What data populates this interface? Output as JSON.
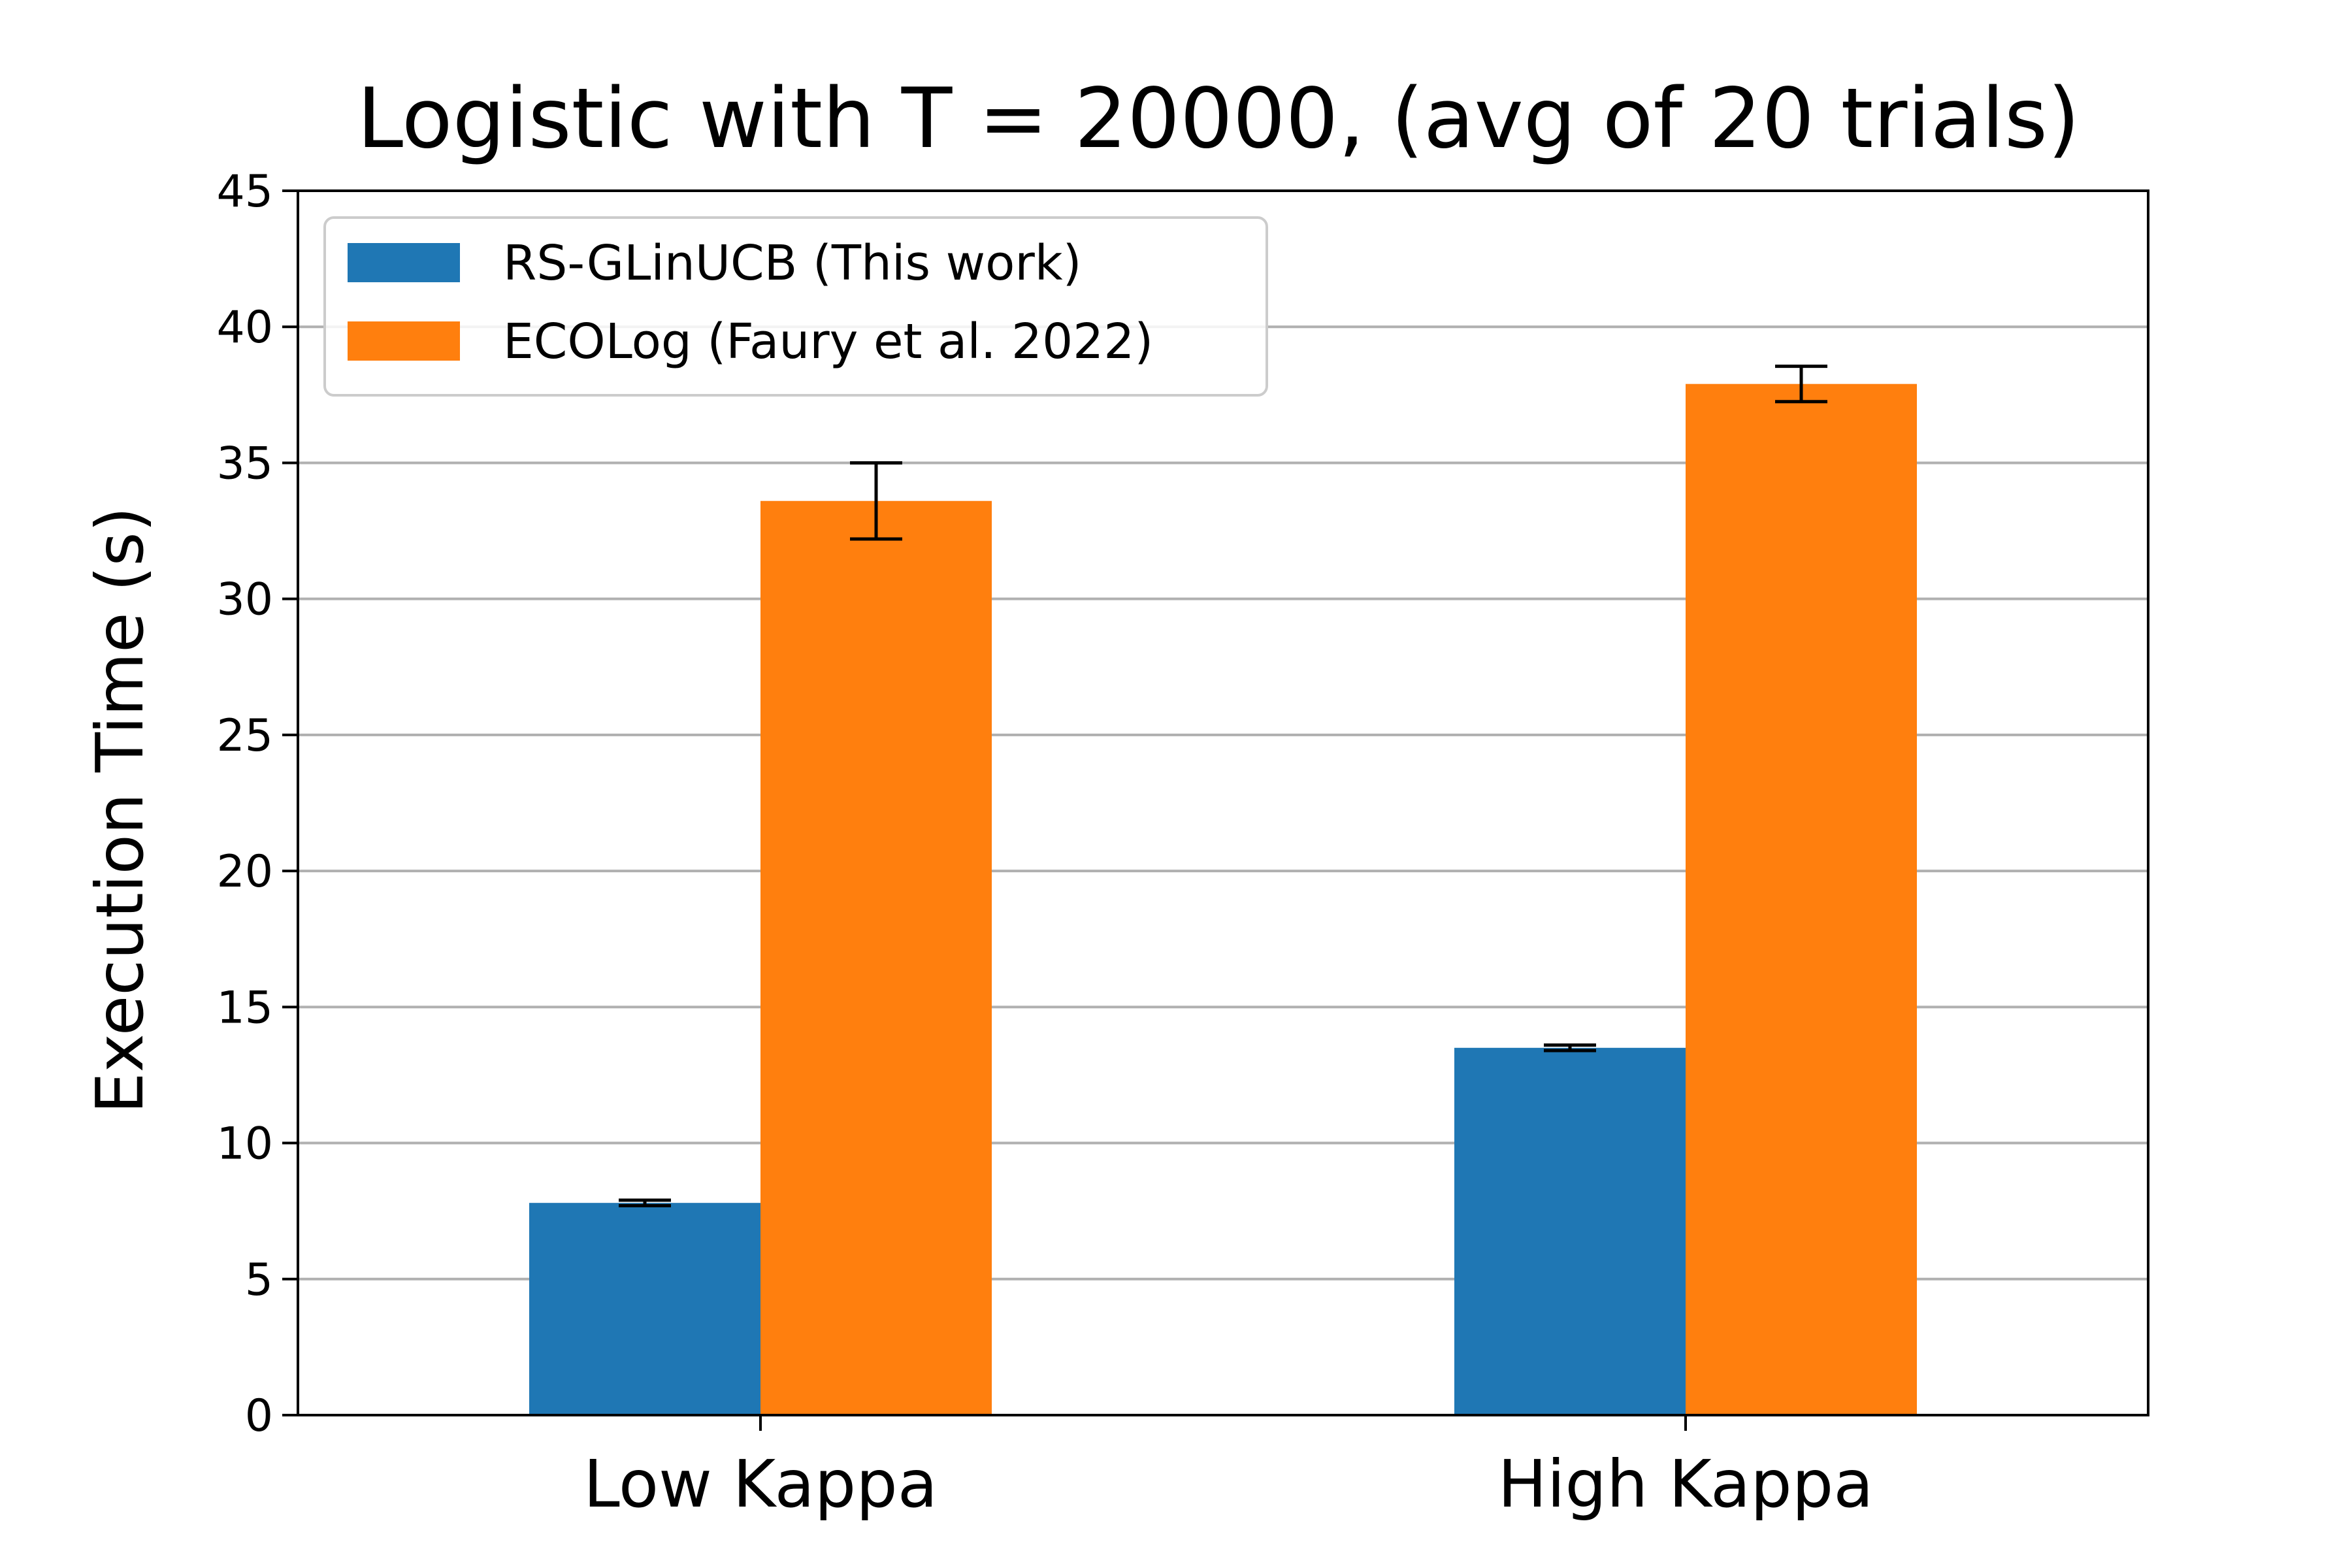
{
  "chart_data": {
    "type": "bar",
    "title": "Logistic with T = 20000, (avg of 20 trials)",
    "xlabel": "",
    "ylabel": "Execution Time (s)",
    "categories": [
      "Low Kappa",
      "High Kappa"
    ],
    "series": [
      {
        "name": "RS-GLinUCB (This work)",
        "color": "#1f77b4",
        "values": [
          7.8,
          13.5
        ],
        "errors": [
          0.1,
          0.1
        ]
      },
      {
        "name": "ECOLog (Faury et al. 2022)",
        "color": "#ff7f0e",
        "values": [
          33.6,
          37.9
        ],
        "errors": [
          1.4,
          0.65
        ]
      }
    ],
    "ylim": [
      0,
      45
    ],
    "yticks": [
      0,
      5,
      10,
      15,
      20,
      25,
      30,
      35,
      40,
      45
    ],
    "grid": "horizontal",
    "legend_position": "top-left"
  }
}
